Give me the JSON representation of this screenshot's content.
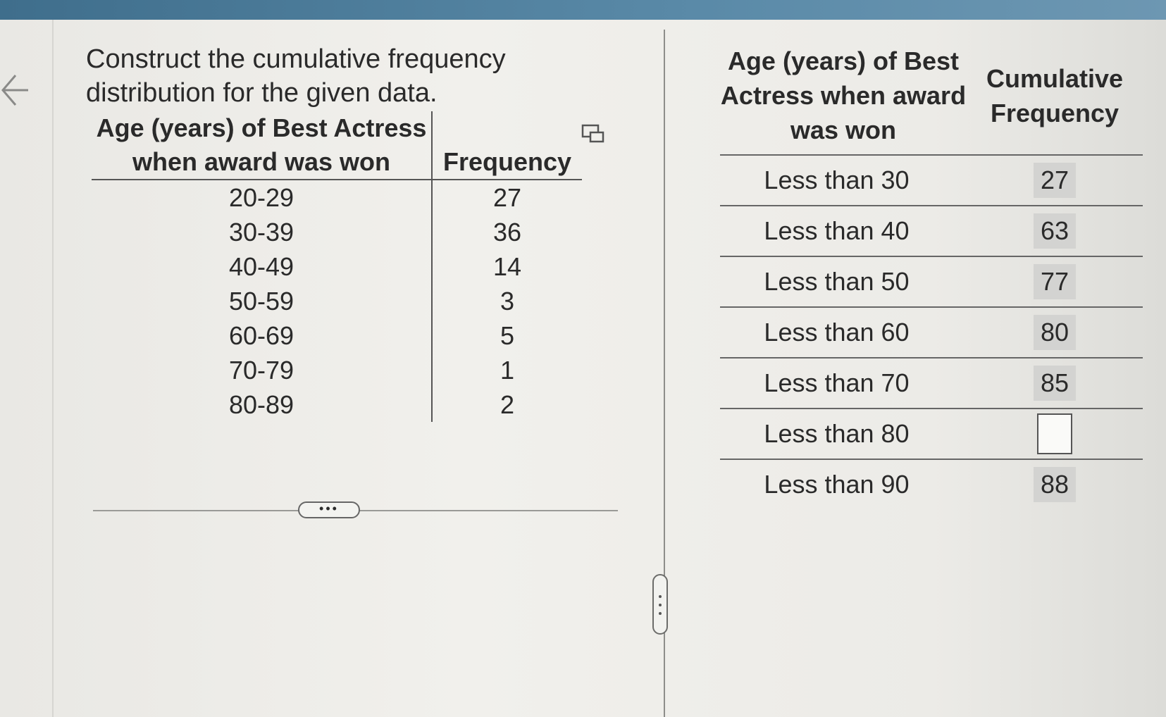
{
  "question": "Construct the cumulative frequency distribution for the given data.",
  "frequency_table": {
    "headers": [
      "Age (years) of Best Actress when award was won",
      "Frequency"
    ],
    "rows": [
      [
        "20-29",
        27
      ],
      [
        "30-39",
        36
      ],
      [
        "40-49",
        14
      ],
      [
        "50-59",
        3
      ],
      [
        "60-69",
        5
      ],
      [
        "70-79",
        1
      ],
      [
        "80-89",
        2
      ]
    ]
  },
  "cumulative_table": {
    "headers": [
      "Age (years) of Best Actress when award was won",
      "Cumulative Frequency"
    ],
    "rows": [
      [
        "Less than 30",
        27
      ],
      [
        "Less than 40",
        63
      ],
      [
        "Less than 50",
        77
      ],
      [
        "Less than 60",
        80
      ],
      [
        "Less than 70",
        85
      ],
      [
        "Less than 80",
        null
      ],
      [
        "Less than 90",
        88
      ]
    ]
  }
}
